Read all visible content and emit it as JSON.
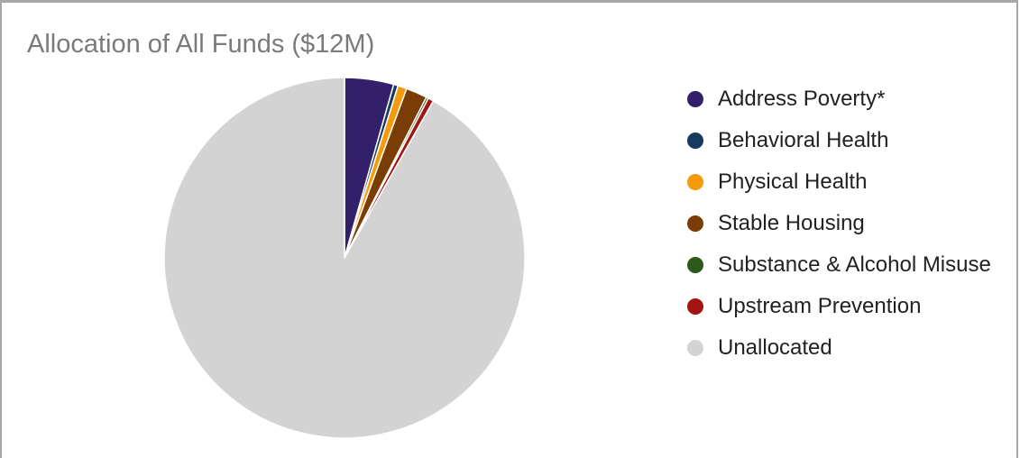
{
  "chart_data": {
    "type": "pie",
    "title": "Allocation of All Funds ($12M)",
    "legend_position": "right",
    "slices": [
      {
        "label": "Address Poverty*",
        "value": 4.4,
        "color": "#32206b"
      },
      {
        "label": "Behavioral Health",
        "value": 0.4,
        "color": "#173a63"
      },
      {
        "label": "Physical Health",
        "value": 0.8,
        "color": "#f59b0b"
      },
      {
        "label": "Stable Housing",
        "value": 1.9,
        "color": "#7a3d05"
      },
      {
        "label": "Substance & Alcohol Misuse",
        "value": 0.2,
        "color": "#2d5a1a"
      },
      {
        "label": "Upstream Prevention",
        "value": 0.5,
        "color": "#a31512"
      },
      {
        "label": "Unallocated",
        "value": 91.8,
        "color": "#d3d3d3"
      }
    ]
  }
}
